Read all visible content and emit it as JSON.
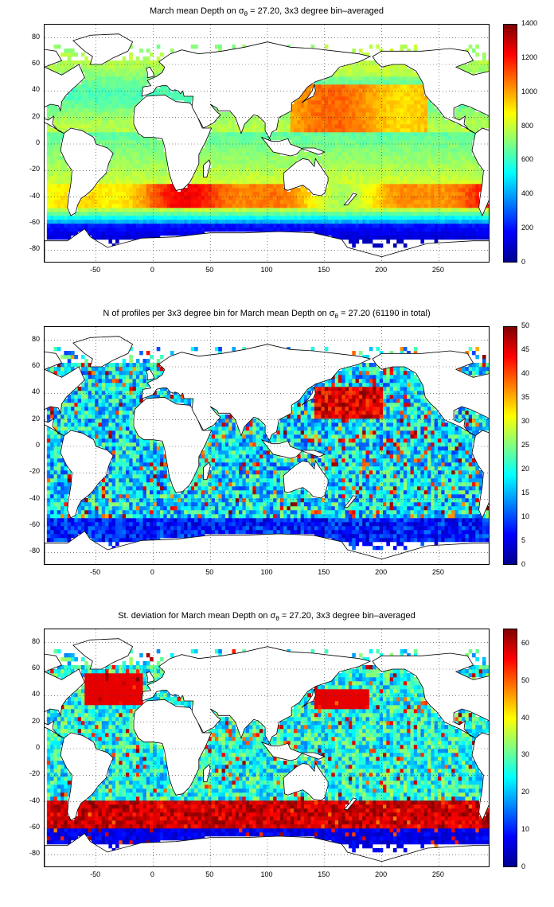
{
  "colors": {
    "land": "#ffffff",
    "coast": "#000000",
    "grid": "#333333",
    "colormap": [
      "#00008f",
      "#0000ff",
      "#0080ff",
      "#00ffff",
      "#80ff80",
      "#ffff00",
      "#ff8000",
      "#ff0000",
      "#800000"
    ]
  },
  "chart_data": [
    {
      "type": "heatmap",
      "title_prefix": "March mean Depth on σ",
      "title_sub": "θ",
      "title_suffix": " = 27.20, 3x3 degree bin–averaged",
      "xlim": [
        -95,
        295
      ],
      "ylim": [
        -90,
        90
      ],
      "xticks": [
        "-50",
        "0",
        "50",
        "100",
        "150",
        "200",
        "250"
      ],
      "yticks": [
        "80",
        "60",
        "40",
        "20",
        "0",
        "-20",
        "-40",
        "-60",
        "-80"
      ],
      "colorbar": {
        "clim": [
          0,
          1400
        ],
        "ticks": [
          "1400",
          "1200",
          "1000",
          "800",
          "600",
          "400",
          "200",
          "0"
        ]
      },
      "grid": true,
      "field": "mean_depth",
      "bin_size_deg": 3
    },
    {
      "type": "heatmap",
      "title_prefix": "N of profiles per 3x3 degree bin for March mean Depth on σ",
      "title_sub": "θ",
      "title_suffix": " = 27.20 (61190 in total)",
      "xlim": [
        -95,
        295
      ],
      "ylim": [
        -90,
        90
      ],
      "xticks": [
        "-50",
        "0",
        "50",
        "100",
        "150",
        "200",
        "250"
      ],
      "yticks": [
        "80",
        "60",
        "40",
        "20",
        "0",
        "-20",
        "-40",
        "-60",
        "-80"
      ],
      "colorbar": {
        "clim": [
          0,
          50
        ],
        "ticks": [
          "50",
          "45",
          "40",
          "35",
          "30",
          "25",
          "20",
          "15",
          "10",
          "5",
          "0"
        ]
      },
      "grid": true,
      "field": "n_profiles",
      "total_profiles": 61190,
      "bin_size_deg": 3
    },
    {
      "type": "heatmap",
      "title_prefix": "St. deviation for March mean Depth on σ",
      "title_sub": "θ",
      "title_suffix": " = 27.20, 3x3 degree bin–averaged",
      "xlim": [
        -95,
        295
      ],
      "ylim": [
        -90,
        90
      ],
      "xticks": [
        "-50",
        "0",
        "50",
        "100",
        "150",
        "200",
        "250"
      ],
      "yticks": [
        "80",
        "60",
        "40",
        "20",
        "0",
        "-20",
        "-40",
        "-60",
        "-80"
      ],
      "colorbar": {
        "clim": [
          0,
          64
        ],
        "ticks": [
          "60",
          "50",
          "40",
          "30",
          "20",
          "10",
          "0"
        ]
      },
      "grid": true,
      "field": "std_depth",
      "bin_size_deg": 3
    }
  ]
}
